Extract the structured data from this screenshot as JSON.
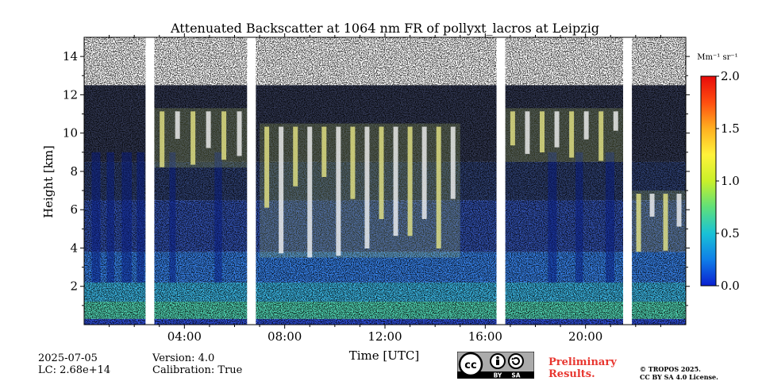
{
  "chart_data": {
    "type": "heatmap",
    "title": "Attenuated Backscatter at 1064 nm FR of pollyxt_lacros at Leipzig",
    "xlabel": "Time [UTC]",
    "ylabel": "Height [km]",
    "xlim": [
      0,
      24
    ],
    "ylim": [
      0,
      15
    ],
    "x_ticks": [
      {
        "value": 4,
        "label": "04:00"
      },
      {
        "value": 8,
        "label": "08:00"
      },
      {
        "value": 12,
        "label": "12:00"
      },
      {
        "value": 16,
        "label": "16:00"
      },
      {
        "value": 20,
        "label": "20:00"
      }
    ],
    "y_ticks": [
      {
        "value": 2,
        "label": "2"
      },
      {
        "value": 4,
        "label": "4"
      },
      {
        "value": 6,
        "label": "6"
      },
      {
        "value": 8,
        "label": "8"
      },
      {
        "value": 10,
        "label": "10"
      },
      {
        "value": 12,
        "label": "12"
      },
      {
        "value": 14,
        "label": "14"
      }
    ],
    "colorbar": {
      "unit_label": "Mm⁻¹ sr⁻¹",
      "range": [
        0.0,
        2.0
      ],
      "ticks": [
        {
          "value": 0.0,
          "label": "0.0"
        },
        {
          "value": 0.5,
          "label": "0.5"
        },
        {
          "value": 1.0,
          "label": "1.0"
        },
        {
          "value": 1.5,
          "label": "1.5"
        },
        {
          "value": 2.0,
          "label": "2.0"
        }
      ],
      "colors": [
        "#0a1fd1",
        "#0f7fe8",
        "#19c2d6",
        "#5fe07a",
        "#c9f02a",
        "#fff23a",
        "#ffb020",
        "#ff4e10",
        "#e80a0a"
      ]
    },
    "data_gaps_utc": [
      [
        2.45,
        2.8
      ],
      [
        6.5,
        6.85
      ],
      [
        16.45,
        16.8
      ],
      [
        21.5,
        21.85
      ]
    ],
    "features": [
      {
        "name": "boundary layer",
        "start": 0,
        "end": 24,
        "top_km": 2.2,
        "note": "dense aerosol, blue-green"
      },
      {
        "name": "high cloud",
        "start": 2.8,
        "end": 6.5,
        "base_km": 8.2,
        "top_km": 11.3
      },
      {
        "name": "mid cloud",
        "start": 7.0,
        "end": 15.0,
        "base_km": 3.5,
        "top_km": 10.5
      },
      {
        "name": "high cloud",
        "start": 16.8,
        "end": 21.5,
        "base_km": 8.5,
        "top_km": 11.3
      },
      {
        "name": "low cloud",
        "start": 21.85,
        "end": 24,
        "base_km": 3.8,
        "top_km": 7.0
      }
    ]
  },
  "footer": {
    "date": "2025-07-05",
    "lidar_constant": "LC: 2.68e+14",
    "version": "Version: 4.0",
    "calibration": "Calibration: True",
    "license_badge": {
      "cc": "cc",
      "by": "BY",
      "sa": "SA"
    },
    "preliminary_line1": "Preliminary",
    "preliminary_line2": "Results.",
    "copyright_line1": "© TROPOS 2025.",
    "copyright_line2": "CC BY SA 4.0 License."
  }
}
